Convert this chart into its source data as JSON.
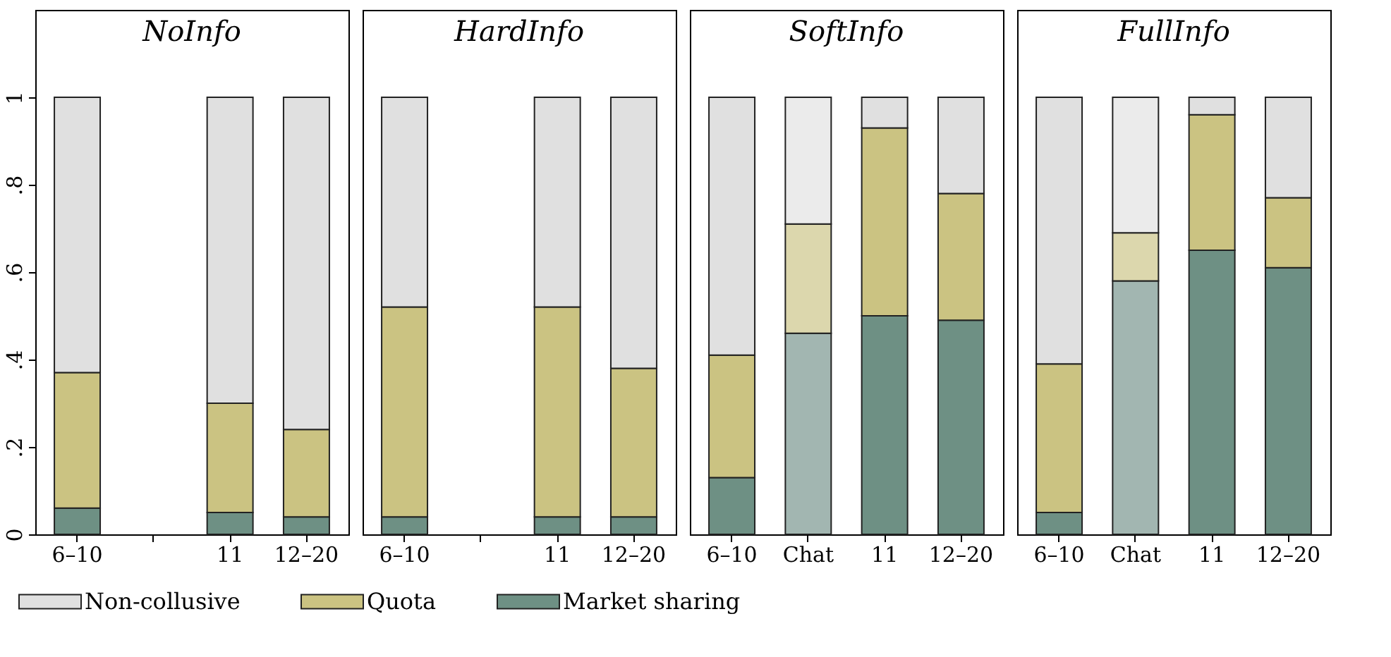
{
  "chart_data": [
    {
      "type": "bar",
      "stacked": true,
      "title": "NoInfo",
      "categories": [
        "6–10",
        null,
        "11",
        "12–20"
      ],
      "ylim": [
        0,
        1.2
      ],
      "yticks": [
        0,
        {
          "value": 0.2,
          "label": ".2"
        },
        {
          "value": 0.4,
          "label": ".4"
        },
        {
          "value": 0.6,
          "label": ".6"
        },
        {
          "value": 0.8,
          "label": ".8"
        },
        1
      ],
      "legend": "bottom",
      "series": [
        {
          "name": "Market sharing",
          "color": "#6e9084",
          "values": [
            0.06,
            null,
            0.05,
            0.04
          ]
        },
        {
          "name": "Quota",
          "color": "#cbc382",
          "values": [
            0.31,
            null,
            0.25,
            0.2
          ]
        },
        {
          "name": "Non-collusive",
          "color": "#e0e0e0",
          "values": [
            0.63,
            null,
            0.7,
            0.76
          ]
        }
      ]
    },
    {
      "type": "bar",
      "stacked": true,
      "title": "HardInfo",
      "categories": [
        "6–10",
        null,
        "11",
        "12–20"
      ],
      "ylim": [
        0,
        1.2
      ],
      "tick_labels": "x",
      "legend": "bottom",
      "series": [
        {
          "name": "Market sharing",
          "color": "#6e9084",
          "values": [
            0.04,
            null,
            0.04,
            0.04
          ]
        },
        {
          "name": "Quota",
          "color": "#cbc382",
          "values": [
            0.48,
            null,
            0.48,
            0.34
          ]
        },
        {
          "name": "Non-collusive",
          "color": "#e0e0e0",
          "values": [
            0.48,
            null,
            0.48,
            0.62
          ]
        }
      ]
    },
    {
      "type": "bar",
      "stacked": true,
      "title": "SoftInfo",
      "categories": [
        "6–10",
        "Chat",
        "11",
        "12–20"
      ],
      "ylim": [
        0,
        1.2
      ],
      "tick_labels": "x",
      "legend": "bottom",
      "series": [
        {
          "name": "Market sharing",
          "color": "#6e9084",
          "colors": [
            null,
            "#a2b6b1",
            null,
            null
          ],
          "values": [
            0.13,
            0.46,
            0.5,
            0.49
          ]
        },
        {
          "name": "Quota",
          "color": "#cbc382",
          "colors": [
            null,
            "#dcd7ad",
            null,
            null
          ],
          "values": [
            0.28,
            0.25,
            0.43,
            0.29
          ]
        },
        {
          "name": "Non-collusive",
          "color": "#e0e0e0",
          "colors": [
            null,
            "#ebebeb",
            null,
            null
          ],
          "values": [
            0.59,
            0.29,
            0.07,
            0.22
          ]
        }
      ]
    },
    {
      "type": "bar",
      "stacked": true,
      "title": "FullInfo",
      "categories": [
        "6–10",
        "Chat",
        "11",
        "12–20"
      ],
      "ylim": [
        0,
        1.2
      ],
      "tick_labels": "x",
      "legend": "bottom",
      "series": [
        {
          "name": "Market sharing",
          "color": "#6e9084",
          "colors": [
            null,
            "#a2b6b1",
            null,
            null
          ],
          "values": [
            0.05,
            0.58,
            0.65,
            0.61
          ]
        },
        {
          "name": "Quota",
          "color": "#cbc382",
          "colors": [
            null,
            "#dcd7ad",
            null,
            null
          ],
          "values": [
            0.34,
            0.11,
            0.31,
            0.16
          ]
        },
        {
          "name": "Non-collusive",
          "color": "#e0e0e0",
          "colors": [
            null,
            "#ebebeb",
            null,
            null
          ],
          "values": [
            0.61,
            0.31,
            0.04,
            0.23
          ]
        }
      ]
    }
  ]
}
